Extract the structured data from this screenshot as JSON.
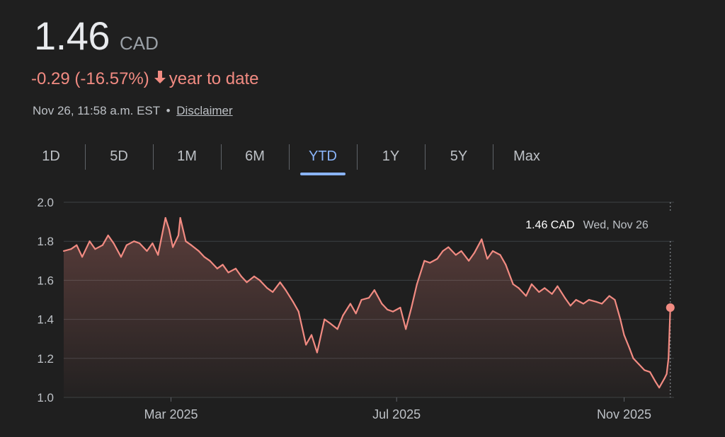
{
  "quote": {
    "price": "1.46",
    "currency": "CAD",
    "change": "-0.29 (-16.57%)",
    "period_label": "year to date",
    "timestamp": "Nov 26, 11:58 a.m. EST",
    "bullet": "•",
    "disclaimer": "Disclaimer"
  },
  "tabs": [
    {
      "label": "1D"
    },
    {
      "label": "5D"
    },
    {
      "label": "1M"
    },
    {
      "label": "6M"
    },
    {
      "label": "YTD",
      "active": true
    },
    {
      "label": "1Y"
    },
    {
      "label": "5Y"
    },
    {
      "label": "Max"
    }
  ],
  "tooltip": {
    "value": "1.46 CAD",
    "date": "Wed, Nov 26"
  },
  "colors": {
    "line": "#f28b82",
    "accent": "#8ab4f8",
    "background": "#1f1f1f"
  },
  "chart_data": {
    "type": "line",
    "ylim": [
      1.0,
      2.0
    ],
    "yticks": [
      "1.0",
      "1.2",
      "1.4",
      "1.6",
      "1.8",
      "2.0"
    ],
    "xticks": [
      {
        "date": "2025-03-01",
        "label": "Mar 2025"
      },
      {
        "date": "2025-07-01",
        "label": "Jul 2025"
      },
      {
        "date": "2025-11-01",
        "label": "Nov 2025"
      }
    ],
    "xrange": [
      "2025-01-02",
      "2025-11-28"
    ],
    "grid": true,
    "series": [
      {
        "points": [
          [
            "2025-01-02",
            1.75
          ],
          [
            "2025-01-06",
            1.76
          ],
          [
            "2025-01-09",
            1.78
          ],
          [
            "2025-01-12",
            1.72
          ],
          [
            "2025-01-16",
            1.8
          ],
          [
            "2025-01-19",
            1.76
          ],
          [
            "2025-01-23",
            1.78
          ],
          [
            "2025-01-26",
            1.83
          ],
          [
            "2025-01-29",
            1.79
          ],
          [
            "2025-02-02",
            1.72
          ],
          [
            "2025-02-05",
            1.78
          ],
          [
            "2025-02-09",
            1.8
          ],
          [
            "2025-02-12",
            1.79
          ],
          [
            "2025-02-16",
            1.75
          ],
          [
            "2025-02-19",
            1.79
          ],
          [
            "2025-02-22",
            1.73
          ],
          [
            "2025-02-26",
            1.92
          ],
          [
            "2025-02-28",
            1.86
          ],
          [
            "2025-03-02",
            1.77
          ],
          [
            "2025-03-05",
            1.83
          ],
          [
            "2025-03-06",
            1.92
          ],
          [
            "2025-03-09",
            1.8
          ],
          [
            "2025-03-12",
            1.78
          ],
          [
            "2025-03-16",
            1.75
          ],
          [
            "2025-03-19",
            1.72
          ],
          [
            "2025-03-22",
            1.7
          ],
          [
            "2025-03-26",
            1.66
          ],
          [
            "2025-03-29",
            1.68
          ],
          [
            "2025-04-01",
            1.64
          ],
          [
            "2025-04-05",
            1.66
          ],
          [
            "2025-04-08",
            1.62
          ],
          [
            "2025-04-11",
            1.59
          ],
          [
            "2025-04-15",
            1.62
          ],
          [
            "2025-04-18",
            1.6
          ],
          [
            "2025-04-22",
            1.56
          ],
          [
            "2025-04-25",
            1.54
          ],
          [
            "2025-04-29",
            1.59
          ],
          [
            "2025-05-02",
            1.55
          ],
          [
            "2025-05-06",
            1.49
          ],
          [
            "2025-05-09",
            1.44
          ],
          [
            "2025-05-13",
            1.27
          ],
          [
            "2025-05-16",
            1.32
          ],
          [
            "2025-05-19",
            1.23
          ],
          [
            "2025-05-23",
            1.4
          ],
          [
            "2025-05-26",
            1.38
          ],
          [
            "2025-05-30",
            1.35
          ],
          [
            "2025-06-02",
            1.42
          ],
          [
            "2025-06-06",
            1.48
          ],
          [
            "2025-06-09",
            1.43
          ],
          [
            "2025-06-12",
            1.5
          ],
          [
            "2025-06-16",
            1.51
          ],
          [
            "2025-06-19",
            1.55
          ],
          [
            "2025-06-23",
            1.48
          ],
          [
            "2025-06-26",
            1.45
          ],
          [
            "2025-06-29",
            1.44
          ],
          [
            "2025-07-03",
            1.46
          ],
          [
            "2025-07-06",
            1.35
          ],
          [
            "2025-07-09",
            1.46
          ],
          [
            "2025-07-12",
            1.58
          ],
          [
            "2025-07-16",
            1.7
          ],
          [
            "2025-07-19",
            1.69
          ],
          [
            "2025-07-23",
            1.71
          ],
          [
            "2025-07-26",
            1.75
          ],
          [
            "2025-07-29",
            1.77
          ],
          [
            "2025-08-02",
            1.73
          ],
          [
            "2025-08-05",
            1.75
          ],
          [
            "2025-08-09",
            1.7
          ],
          [
            "2025-08-12",
            1.74
          ],
          [
            "2025-08-16",
            1.81
          ],
          [
            "2025-08-19",
            1.71
          ],
          [
            "2025-08-22",
            1.75
          ],
          [
            "2025-08-26",
            1.73
          ],
          [
            "2025-08-29",
            1.68
          ],
          [
            "2025-09-02",
            1.58
          ],
          [
            "2025-09-05",
            1.56
          ],
          [
            "2025-09-09",
            1.52
          ],
          [
            "2025-09-12",
            1.58
          ],
          [
            "2025-09-16",
            1.54
          ],
          [
            "2025-09-19",
            1.56
          ],
          [
            "2025-09-23",
            1.53
          ],
          [
            "2025-09-26",
            1.57
          ],
          [
            "2025-09-30",
            1.51
          ],
          [
            "2025-10-03",
            1.47
          ],
          [
            "2025-10-06",
            1.5
          ],
          [
            "2025-10-10",
            1.48
          ],
          [
            "2025-10-13",
            1.5
          ],
          [
            "2025-10-17",
            1.49
          ],
          [
            "2025-10-20",
            1.48
          ],
          [
            "2025-10-24",
            1.52
          ],
          [
            "2025-10-27",
            1.5
          ],
          [
            "2025-10-30",
            1.4
          ],
          [
            "2025-11-01",
            1.32
          ],
          [
            "2025-11-04",
            1.25
          ],
          [
            "2025-11-06",
            1.2
          ],
          [
            "2025-11-09",
            1.17
          ],
          [
            "2025-11-12",
            1.14
          ],
          [
            "2025-11-15",
            1.13
          ],
          [
            "2025-11-18",
            1.08
          ],
          [
            "2025-11-20",
            1.05
          ],
          [
            "2025-11-23",
            1.1
          ],
          [
            "2025-11-24",
            1.12
          ],
          [
            "2025-11-25",
            1.2
          ],
          [
            "2025-11-26",
            1.46
          ]
        ]
      }
    ]
  }
}
